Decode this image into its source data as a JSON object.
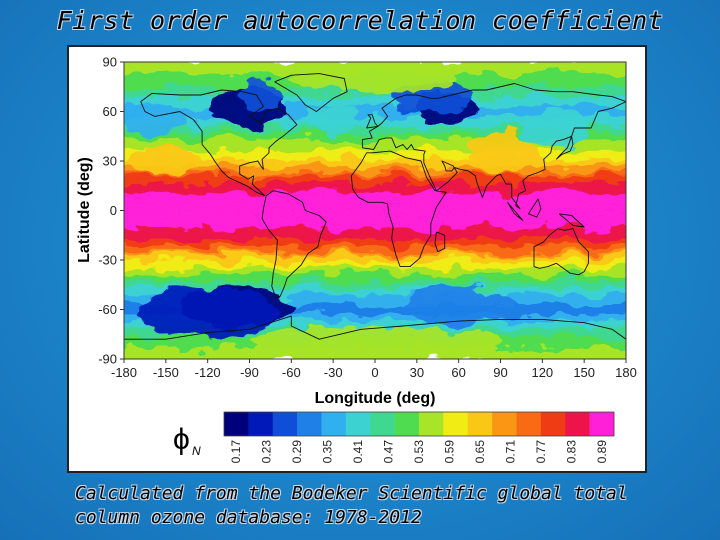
{
  "slide": {
    "title": "First order autocorrelation coefficient",
    "caption_line1": "Calculated from the Bodeker Scientific global total",
    "caption_line2": "column ozone database: 1978-2012"
  },
  "chart_data": {
    "type": "heatmap",
    "xlabel": "Longitude (deg)",
    "ylabel": "Latitude (deg)",
    "xlim": [
      -180,
      180
    ],
    "ylim": [
      -90,
      90
    ],
    "x_ticks": [
      -180,
      -150,
      -120,
      -90,
      -60,
      -30,
      0,
      30,
      60,
      90,
      120,
      150,
      180
    ],
    "y_ticks": [
      90,
      60,
      30,
      0,
      -30,
      -60,
      -90
    ],
    "colorbar": {
      "label": "ϕ",
      "label_subscript": "N",
      "tick_labels": [
        "0.17",
        "0.23",
        "0.29",
        "0.35",
        "0.41",
        "0.47",
        "0.53",
        "0.59",
        "0.65",
        "0.71",
        "0.77",
        "0.83",
        "0.89"
      ],
      "colors": [
        "#00007a",
        "#0019b8",
        "#0f4fd8",
        "#1f80e8",
        "#30b0ee",
        "#3cd2d2",
        "#40d890",
        "#50dc50",
        "#a8e428",
        "#f0ec14",
        "#fac814",
        "#fa9614",
        "#f86a14",
        "#f03c14",
        "#ec144a",
        "#ff20d8"
      ]
    },
    "zonal_profile": {
      "latitudes": [
        90,
        80,
        70,
        60,
        50,
        40,
        30,
        20,
        10,
        0,
        -10,
        -20,
        -30,
        -40,
        -50,
        -60,
        -70,
        -80,
        -90
      ],
      "values": [
        0.55,
        0.52,
        0.44,
        0.38,
        0.45,
        0.55,
        0.62,
        0.77,
        0.85,
        0.9,
        0.85,
        0.77,
        0.63,
        0.52,
        0.4,
        0.32,
        0.42,
        0.52,
        0.56
      ]
    }
  }
}
